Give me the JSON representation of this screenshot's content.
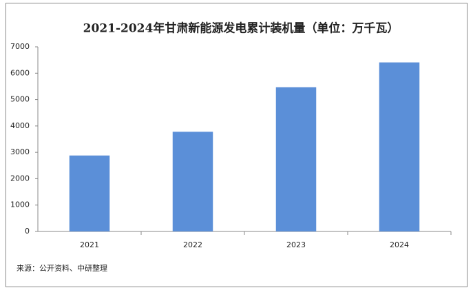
{
  "chart_data": {
    "type": "bar",
    "title": "2021-2024年甘肃新能源发电累计装机量（单位：万千瓦）",
    "categories": [
      "2021",
      "2022",
      "2023",
      "2024"
    ],
    "values": [
      2880,
      3780,
      5470,
      6410
    ],
    "color": "#5b8fd8",
    "ylim": [
      0,
      7000
    ],
    "yticks": [
      0,
      1000,
      2000,
      3000,
      4000,
      5000,
      6000,
      7000
    ],
    "grid": false,
    "source": "来源：公开资料、中研整理"
  }
}
